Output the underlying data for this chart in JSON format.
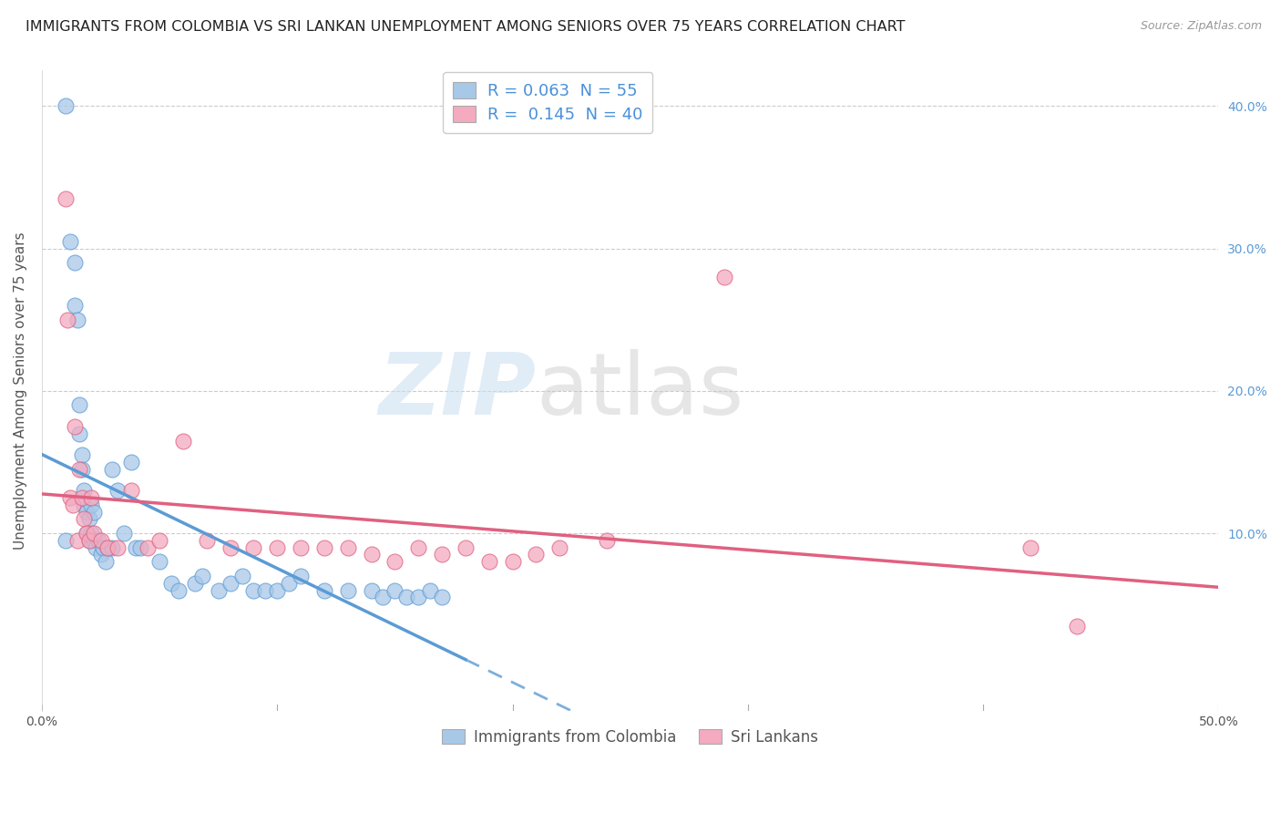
{
  "title": "IMMIGRANTS FROM COLOMBIA VS SRI LANKAN UNEMPLOYMENT AMONG SENIORS OVER 75 YEARS CORRELATION CHART",
  "source": "Source: ZipAtlas.com",
  "ylabel": "Unemployment Among Seniors over 75 years",
  "xlim": [
    0,
    0.5
  ],
  "ylim": [
    -0.025,
    0.425
  ],
  "legend_label1": "Immigrants from Colombia",
  "legend_label2": "Sri Lankans",
  "R1": "0.063",
  "N1": "55",
  "R2": "0.145",
  "N2": "40",
  "color1": "#a8c8e8",
  "color2": "#f4aabf",
  "line_color1": "#5b9bd5",
  "line_color2": "#e06080",
  "watermark_zip": "ZIP",
  "watermark_atlas": "atlas",
  "background_color": "#ffffff",
  "grid_color": "#cccccc",
  "title_color": "#222222",
  "title_fontsize": 11.5,
  "axis_label_fontsize": 11,
  "tick_fontsize": 10,
  "right_tick_color": "#5b9bd5",
  "colombia_x": [
    0.01,
    0.012,
    0.014,
    0.014,
    0.015,
    0.016,
    0.016,
    0.017,
    0.017,
    0.018,
    0.018,
    0.019,
    0.019,
    0.02,
    0.02,
    0.021,
    0.021,
    0.022,
    0.022,
    0.023,
    0.024,
    0.025,
    0.026,
    0.027,
    0.028,
    0.03,
    0.032,
    0.035,
    0.038,
    0.04,
    0.042,
    0.05,
    0.055,
    0.058,
    0.065,
    0.068,
    0.075,
    0.08,
    0.085,
    0.09,
    0.095,
    0.1,
    0.105,
    0.11,
    0.12,
    0.13,
    0.14,
    0.145,
    0.15,
    0.155,
    0.16,
    0.165,
    0.17,
    0.01,
    0.03
  ],
  "colombia_y": [
    0.4,
    0.305,
    0.29,
    0.26,
    0.25,
    0.19,
    0.17,
    0.155,
    0.145,
    0.13,
    0.12,
    0.115,
    0.1,
    0.11,
    0.095,
    0.12,
    0.1,
    0.115,
    0.095,
    0.09,
    0.095,
    0.085,
    0.09,
    0.08,
    0.09,
    0.09,
    0.13,
    0.1,
    0.15,
    0.09,
    0.09,
    0.08,
    0.065,
    0.06,
    0.065,
    0.07,
    0.06,
    0.065,
    0.07,
    0.06,
    0.06,
    0.06,
    0.065,
    0.07,
    0.06,
    0.06,
    0.06,
    0.055,
    0.06,
    0.055,
    0.055,
    0.06,
    0.055,
    0.095,
    0.145
  ],
  "srilanka_x": [
    0.01,
    0.011,
    0.012,
    0.013,
    0.014,
    0.015,
    0.016,
    0.017,
    0.018,
    0.019,
    0.02,
    0.021,
    0.022,
    0.025,
    0.028,
    0.032,
    0.038,
    0.045,
    0.05,
    0.06,
    0.07,
    0.08,
    0.09,
    0.1,
    0.11,
    0.12,
    0.13,
    0.14,
    0.15,
    0.16,
    0.17,
    0.18,
    0.19,
    0.2,
    0.21,
    0.22,
    0.24,
    0.29,
    0.42,
    0.44
  ],
  "srilanka_y": [
    0.335,
    0.25,
    0.125,
    0.12,
    0.175,
    0.095,
    0.145,
    0.125,
    0.11,
    0.1,
    0.095,
    0.125,
    0.1,
    0.095,
    0.09,
    0.09,
    0.13,
    0.09,
    0.095,
    0.165,
    0.095,
    0.09,
    0.09,
    0.09,
    0.09,
    0.09,
    0.09,
    0.085,
    0.08,
    0.09,
    0.085,
    0.09,
    0.08,
    0.08,
    0.085,
    0.09,
    0.095,
    0.28,
    0.09,
    0.035
  ]
}
